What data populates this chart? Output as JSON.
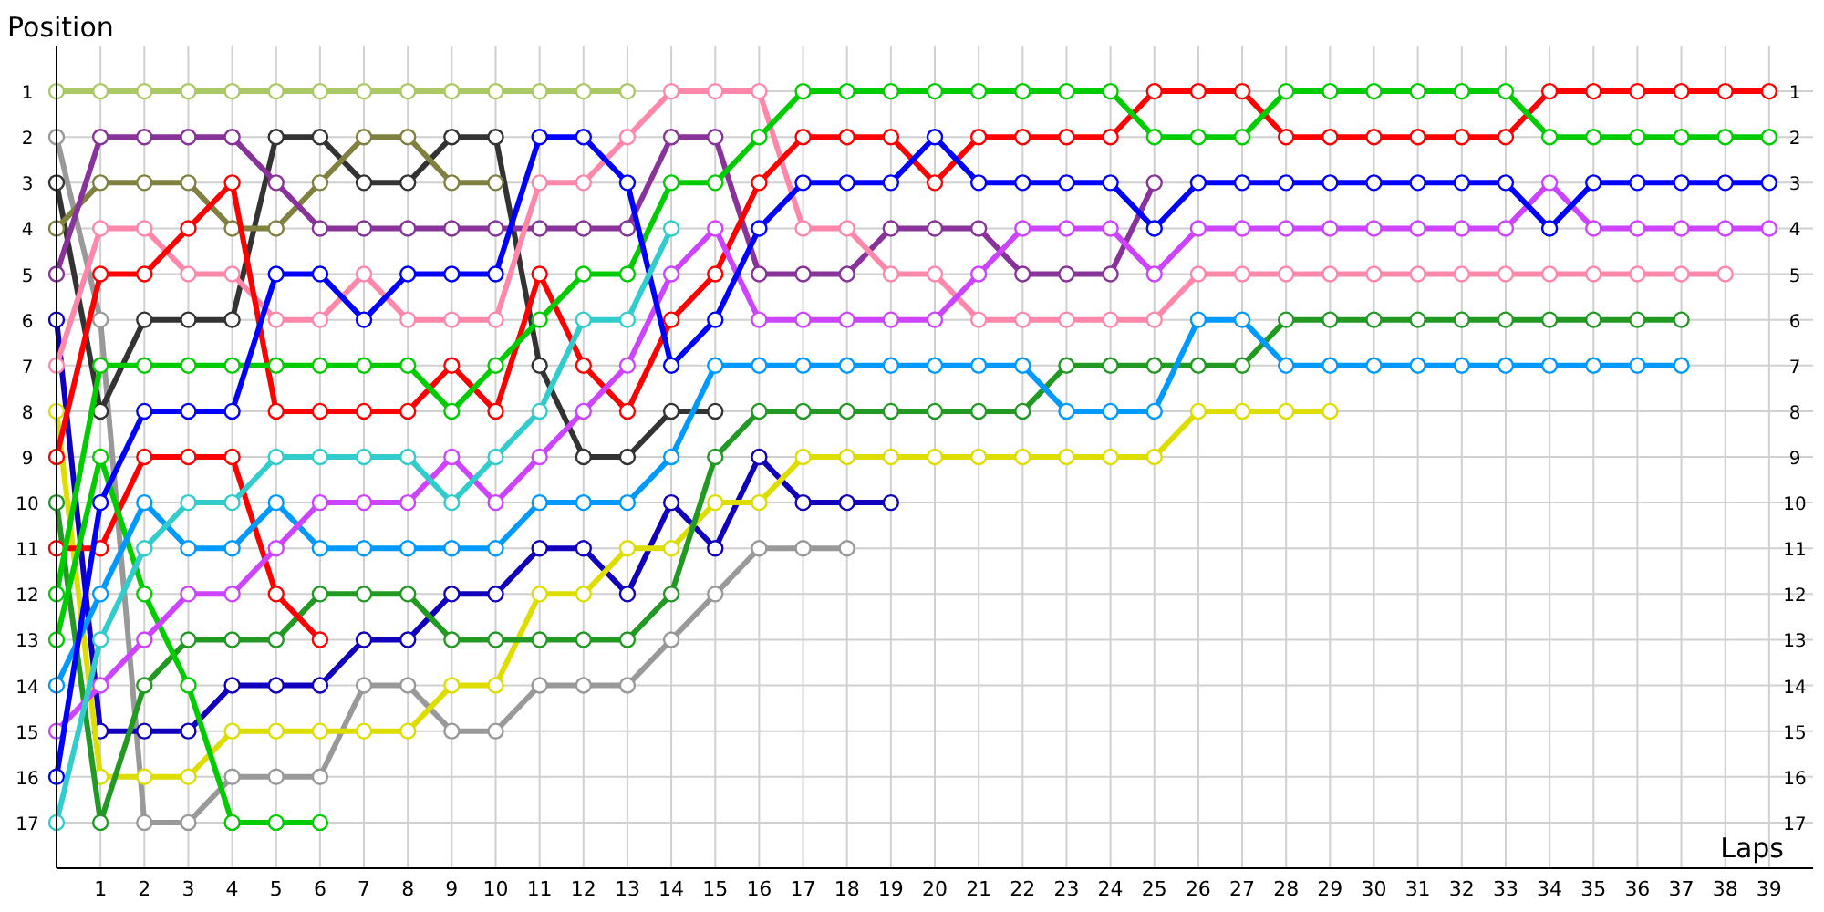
{
  "chart_data": {
    "type": "line",
    "xlabel": "Laps",
    "ylabel": "Position",
    "x": [
      0,
      1,
      2,
      3,
      4,
      5,
      6,
      7,
      8,
      9,
      10,
      11,
      12,
      13,
      14,
      15,
      16,
      17,
      18,
      19,
      20,
      21,
      22,
      23,
      24,
      25,
      26,
      27,
      28,
      29,
      30,
      31,
      32,
      33,
      34,
      35,
      36,
      37,
      38,
      39
    ],
    "xlim": [
      0,
      40
    ],
    "xticks": [
      1,
      2,
      3,
      4,
      5,
      6,
      7,
      8,
      9,
      10,
      11,
      12,
      13,
      14,
      15,
      16,
      17,
      18,
      19,
      20,
      21,
      22,
      23,
      24,
      25,
      26,
      27,
      28,
      29,
      30,
      31,
      32,
      33,
      34,
      35,
      36,
      37,
      38,
      39
    ],
    "ylim": [
      18,
      0
    ],
    "yticks": [
      1,
      2,
      3,
      4,
      5,
      6,
      7,
      8,
      9,
      10,
      11,
      12,
      13,
      14,
      15,
      16,
      17
    ],
    "y2lim": [
      18,
      0
    ],
    "y2ticks": [
      1,
      2,
      3,
      4,
      5,
      6,
      7,
      8,
      9,
      10,
      11,
      12,
      13,
      14,
      15,
      16,
      17
    ],
    "grid": true,
    "marker": "circle",
    "line_style": "solid",
    "series": [
      {
        "color": "#aac866",
        "values": [
          1,
          1,
          1,
          1,
          1,
          1,
          1,
          1,
          1,
          1,
          1,
          1,
          1,
          1,
          null,
          null,
          null,
          null,
          null,
          null,
          null,
          null,
          null,
          null,
          null,
          null,
          null,
          null,
          null,
          null,
          null,
          null,
          null,
          null,
          null,
          null,
          null,
          null,
          null,
          null
        ]
      },
      {
        "color": "#999999",
        "values": [
          2,
          6,
          17,
          17,
          16,
          16,
          16,
          14,
          14,
          15,
          15,
          14,
          14,
          14,
          13,
          12,
          11,
          11,
          11,
          null,
          null,
          null,
          null,
          null,
          null,
          null,
          null,
          null,
          null,
          null,
          null,
          null,
          null,
          null,
          null,
          null,
          null,
          null,
          null,
          null
        ]
      },
      {
        "color": "#333333",
        "values": [
          3,
          8,
          6,
          6,
          6,
          2,
          2,
          3,
          3,
          2,
          2,
          7,
          9,
          9,
          8,
          8,
          null,
          null,
          null,
          null,
          null,
          null,
          null,
          null,
          null,
          null,
          null,
          null,
          null,
          null,
          null,
          null,
          null,
          null,
          null,
          null,
          null,
          null,
          null,
          null
        ]
      },
      {
        "color": "#808040",
        "values": [
          4,
          3,
          3,
          3,
          4,
          4,
          3,
          2,
          2,
          3,
          3,
          null,
          null,
          null,
          null,
          null,
          null,
          null,
          null,
          null,
          null,
          null,
          null,
          null,
          null,
          null,
          null,
          null,
          null,
          null,
          null,
          null,
          null,
          null,
          null,
          null,
          null,
          null,
          null,
          null
        ]
      },
      {
        "color": "#883399",
        "values": [
          5,
          2,
          2,
          2,
          2,
          3,
          4,
          4,
          4,
          4,
          4,
          4,
          4,
          4,
          2,
          2,
          5,
          5,
          5,
          4,
          4,
          4,
          5,
          5,
          5,
          3,
          null,
          null,
          null,
          null,
          null,
          null,
          null,
          null,
          null,
          null,
          null,
          null,
          null,
          null
        ]
      },
      {
        "color": "#1100bb",
        "values": [
          6,
          15,
          15,
          15,
          14,
          14,
          14,
          13,
          13,
          12,
          12,
          11,
          11,
          12,
          10,
          11,
          9,
          10,
          10,
          10,
          null,
          null,
          null,
          null,
          null,
          null,
          null,
          null,
          null,
          null,
          null,
          null,
          null,
          null,
          null,
          null,
          null,
          null,
          null,
          null
        ]
      },
      {
        "color": "#ff88aa",
        "values": [
          7,
          4,
          4,
          5,
          5,
          6,
          6,
          5,
          6,
          6,
          6,
          3,
          3,
          2,
          1,
          1,
          1,
          4,
          4,
          5,
          5,
          6,
          6,
          6,
          6,
          6,
          5,
          5,
          5,
          5,
          5,
          5,
          5,
          5,
          5,
          5,
          5,
          5,
          5,
          null
        ]
      },
      {
        "color": "#dddd00",
        "values": [
          8,
          16,
          16,
          16,
          15,
          15,
          15,
          15,
          15,
          14,
          14,
          12,
          12,
          11,
          11,
          10,
          10,
          9,
          9,
          9,
          9,
          9,
          9,
          9,
          9,
          9,
          8,
          8,
          8,
          8,
          null,
          null,
          null,
          null,
          null,
          null,
          null,
          null,
          null,
          null
        ]
      },
      {
        "color": "#ff0000",
        "values": [
          9,
          5,
          5,
          4,
          3,
          8,
          8,
          8,
          8,
          7,
          8,
          5,
          7,
          8,
          6,
          5,
          3,
          2,
          2,
          2,
          3,
          2,
          2,
          2,
          2,
          1,
          1,
          1,
          2,
          2,
          2,
          2,
          2,
          2,
          1,
          1,
          1,
          1,
          1,
          1
        ]
      },
      {
        "color": "#229922",
        "values": [
          10,
          17,
          14,
          13,
          13,
          13,
          12,
          12,
          12,
          13,
          13,
          13,
          13,
          13,
          12,
          9,
          8,
          8,
          8,
          8,
          8,
          8,
          8,
          7,
          7,
          7,
          7,
          7,
          6,
          6,
          6,
          6,
          6,
          6,
          6,
          6,
          6,
          6,
          null,
          null
        ]
      },
      {
        "color": "#ff0000",
        "values": [
          11,
          11,
          9,
          9,
          9,
          12,
          13,
          null,
          null,
          null,
          null,
          null,
          null,
          null,
          null,
          null,
          null,
          null,
          null,
          null,
          null,
          null,
          null,
          null,
          null,
          null,
          null,
          null,
          null,
          null,
          null,
          null,
          null,
          null,
          null,
          null,
          null,
          null,
          null,
          null
        ]
      },
      {
        "color": "#00cc00",
        "values": [
          12,
          7,
          7,
          7,
          7,
          7,
          7,
          7,
          7,
          8,
          7,
          6,
          5,
          5,
          3,
          3,
          2,
          1,
          1,
          1,
          1,
          1,
          1,
          1,
          1,
          2,
          2,
          2,
          1,
          1,
          1,
          1,
          1,
          1,
          2,
          2,
          2,
          2,
          2,
          2
        ]
      },
      {
        "color": "#00cc00",
        "values": [
          13,
          9,
          12,
          14,
          17,
          17,
          17,
          null,
          null,
          null,
          null,
          null,
          null,
          null,
          null,
          null,
          null,
          null,
          null,
          null,
          null,
          null,
          null,
          null,
          null,
          null,
          null,
          null,
          null,
          null,
          null,
          null,
          null,
          null,
          null,
          null,
          null,
          null,
          null,
          null
        ]
      },
      {
        "color": "#0099ff",
        "values": [
          14,
          12,
          10,
          11,
          11,
          10,
          11,
          11,
          11,
          11,
          11,
          10,
          10,
          10,
          9,
          7,
          7,
          7,
          7,
          7,
          7,
          7,
          7,
          8,
          8,
          8,
          6,
          6,
          7,
          7,
          7,
          7,
          7,
          7,
          7,
          7,
          7,
          7,
          null,
          null
        ]
      },
      {
        "color": "#cc44ff",
        "values": [
          15,
          14,
          13,
          12,
          12,
          11,
          10,
          10,
          10,
          9,
          10,
          9,
          8,
          7,
          5,
          4,
          6,
          6,
          6,
          6,
          6,
          5,
          4,
          4,
          4,
          5,
          4,
          4,
          4,
          4,
          4,
          4,
          4,
          4,
          3,
          4,
          4,
          4,
          4,
          4
        ]
      },
      {
        "color": "#0000ff",
        "values": [
          16,
          10,
          8,
          8,
          8,
          5,
          5,
          6,
          5,
          5,
          5,
          2,
          2,
          3,
          7,
          6,
          4,
          3,
          3,
          3,
          2,
          3,
          3,
          3,
          3,
          4,
          3,
          3,
          3,
          3,
          3,
          3,
          3,
          3,
          4,
          3,
          3,
          3,
          3,
          3
        ]
      },
      {
        "color": "#33cccc",
        "values": [
          17,
          13,
          11,
          10,
          10,
          9,
          9,
          9,
          9,
          10,
          9,
          8,
          6,
          6,
          4,
          null,
          null,
          null,
          null,
          null,
          null,
          null,
          null,
          null,
          null,
          null,
          null,
          null,
          null,
          null,
          null,
          null,
          null,
          null,
          null,
          null,
          null,
          null,
          null,
          null
        ]
      }
    ]
  }
}
